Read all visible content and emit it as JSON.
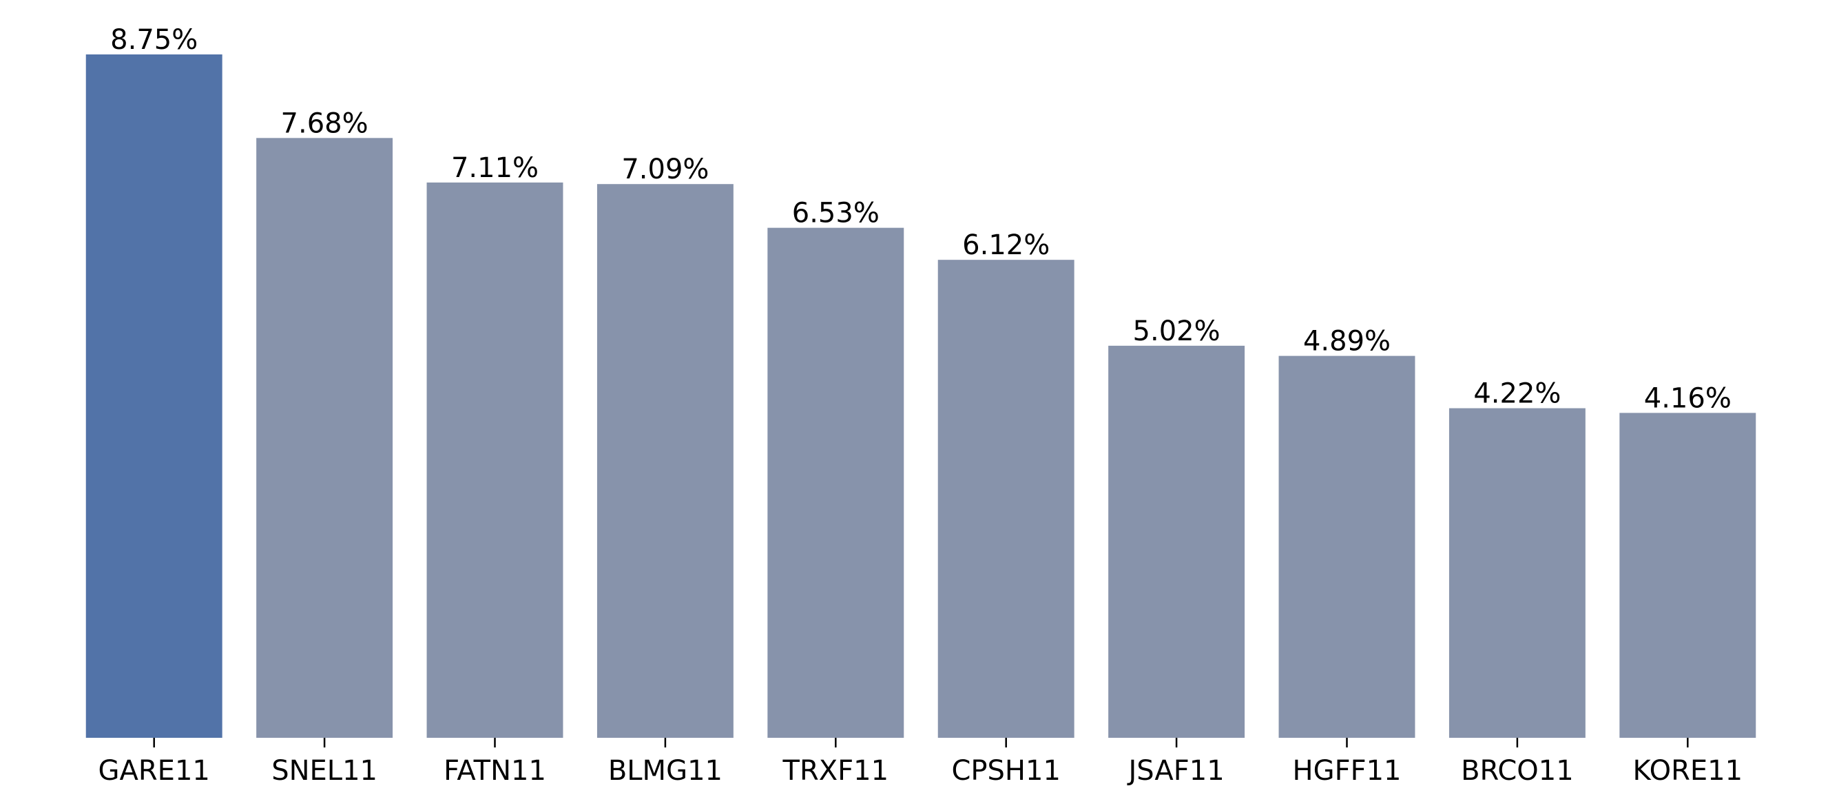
{
  "chart_data": {
    "type": "bar",
    "title": "",
    "xlabel": "",
    "ylabel": "",
    "categories": [
      "GARE11",
      "SNEL11",
      "FATN11",
      "BLMG11",
      "TRXF11",
      "CPSH11",
      "JSAF11",
      "HGFF11",
      "BRCO11",
      "KORE11"
    ],
    "values": [
      8.75,
      7.68,
      7.11,
      7.09,
      6.53,
      6.12,
      5.02,
      4.89,
      4.22,
      4.16
    ],
    "value_labels": [
      "8.75%",
      "7.68%",
      "7.11%",
      "7.09%",
      "6.53%",
      "6.12%",
      "5.02%",
      "4.89%",
      "4.22%",
      "4.16%"
    ],
    "ylim": [
      0,
      8.75
    ],
    "grid": false,
    "y_axis_visible": false,
    "highlight_index": 0,
    "colors": {
      "highlight": "#5273a8",
      "default": "#8793ab"
    }
  }
}
